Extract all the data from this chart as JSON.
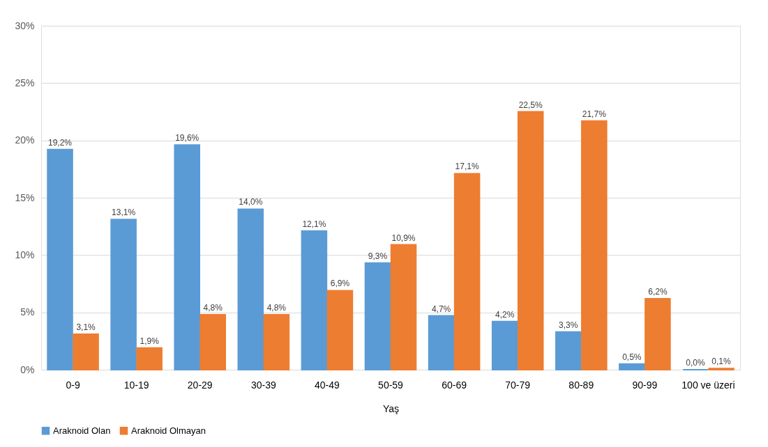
{
  "chart_data": {
    "type": "bar",
    "xlabel": "Yaş",
    "categories": [
      "0-9",
      "10-19",
      "20-29",
      "30-39",
      "40-49",
      "50-59",
      "60-69",
      "70-79",
      "80-89",
      "90-99",
      "100 ve üzeri"
    ],
    "series": [
      {
        "name": "Araknoid Olan",
        "color": "#5b9bd5",
        "values": [
          19.2,
          13.1,
          19.6,
          14.0,
          12.1,
          9.3,
          4.7,
          4.2,
          3.3,
          0.5,
          0.0
        ],
        "value_labels": [
          "19,2%",
          "13,1%",
          "19,6%",
          "14,0%",
          "12,1%",
          "9,3%",
          "4,7%",
          "4,2%",
          "3,3%",
          "0,5%",
          "0,0%"
        ]
      },
      {
        "name": "Araknoid Olmayan",
        "color": "#ed7d31",
        "values": [
          3.1,
          1.9,
          4.8,
          4.8,
          6.9,
          10.9,
          17.1,
          22.5,
          21.7,
          6.2,
          0.1
        ],
        "value_labels": [
          "3,1%",
          "1,9%",
          "4,8%",
          "4,8%",
          "6,9%",
          "10,9%",
          "17,1%",
          "22,5%",
          "21,7%",
          "6,2%",
          "0,1%"
        ]
      }
    ],
    "ylim": [
      0,
      30
    ],
    "yticks": [
      {
        "value": 0,
        "label": "0%"
      },
      {
        "value": 5,
        "label": "5%"
      },
      {
        "value": 10,
        "label": "10%"
      },
      {
        "value": 15,
        "label": "15%"
      },
      {
        "value": 20,
        "label": "20%"
      },
      {
        "value": 25,
        "label": "25%"
      },
      {
        "value": 30,
        "label": "30%"
      }
    ],
    "grid": "y",
    "legend": "bottom"
  }
}
